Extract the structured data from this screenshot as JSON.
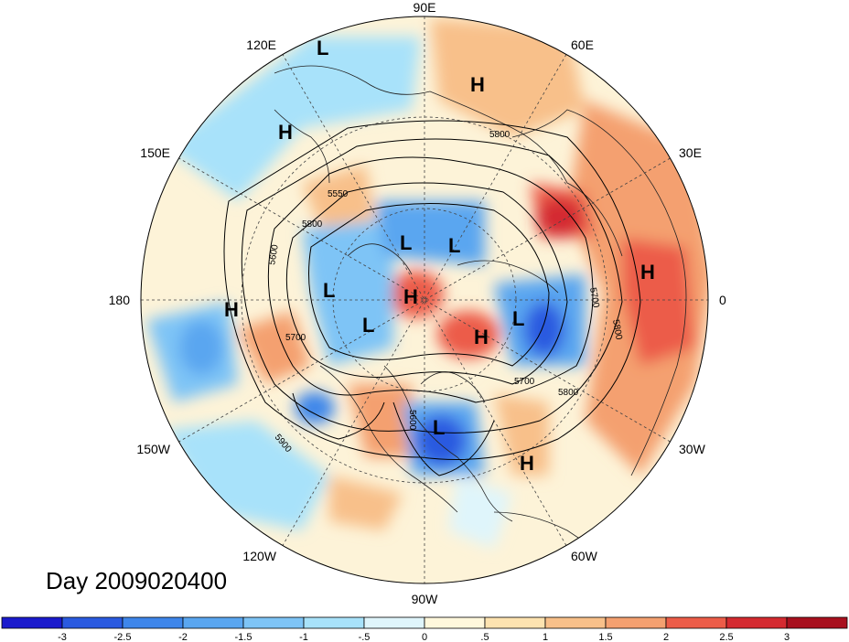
{
  "title": "Day 2009020400",
  "longitude_labels": [
    {
      "key": "90E",
      "text": "90E"
    },
    {
      "key": "60E",
      "text": "60E"
    },
    {
      "key": "30E",
      "text": "30E"
    },
    {
      "key": "0",
      "text": "0"
    },
    {
      "key": "30W",
      "text": "30W"
    },
    {
      "key": "60W",
      "text": "60W"
    },
    {
      "key": "90W",
      "text": "90W"
    },
    {
      "key": "120W",
      "text": "120W"
    },
    {
      "key": "150W",
      "text": "150W"
    },
    {
      "key": "180",
      "text": "180"
    },
    {
      "key": "150E",
      "text": "150E"
    },
    {
      "key": "120E",
      "text": "120E"
    }
  ],
  "contour_labels": [
    "5600",
    "5700",
    "5800",
    "5550",
    "5700",
    "5800",
    "5700",
    "5800",
    "5900",
    "5800",
    "5600"
  ],
  "pressure_centers": [
    {
      "type": "L",
      "lon_label": "120E"
    },
    {
      "type": "H",
      "lon_label": "60E"
    },
    {
      "type": "H",
      "lon_label": "130E"
    },
    {
      "type": "L"
    },
    {
      "type": "L"
    },
    {
      "type": "L"
    },
    {
      "type": "H"
    },
    {
      "type": "L"
    },
    {
      "type": "H"
    },
    {
      "type": "L"
    },
    {
      "type": "H"
    },
    {
      "type": "L"
    },
    {
      "type": "H"
    },
    {
      "type": "H"
    }
  ],
  "colorbar": {
    "labels": [
      "-3",
      "-2.5",
      "-2",
      "-1.5",
      "-1",
      "-.5",
      "0",
      ".5",
      "1",
      "1.5",
      "2",
      "2.5",
      "3"
    ],
    "colors": [
      "#1a1acc",
      "#2a5ae0",
      "#3e86ea",
      "#5aa6f0",
      "#7ec4f6",
      "#a8e2fa",
      "#dff5fb",
      "#fff8dc",
      "#fde3b0",
      "#f8c08a",
      "#f4a070",
      "#ec5c48",
      "#d42a30",
      "#a8101e"
    ]
  },
  "colors": {
    "negative": "#5aa6f0",
    "positive": "#f4a070",
    "land_line": "#222222"
  }
}
